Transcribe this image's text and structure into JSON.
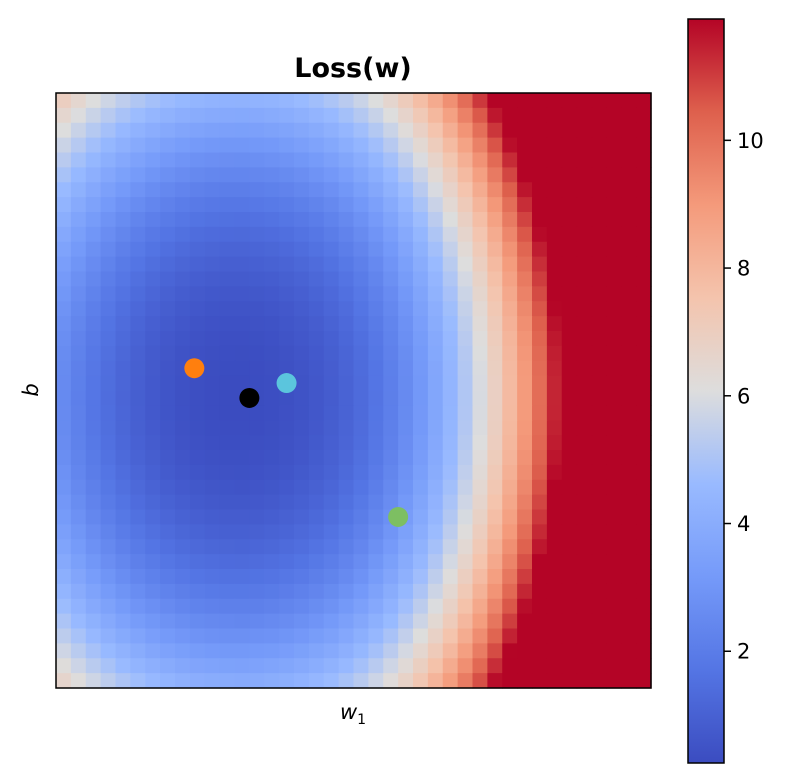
{
  "chart_data": {
    "type": "heatmap",
    "title": "Loss(w)",
    "xlabel": {
      "base": "w",
      "sub": "1"
    },
    "ylabel": "b",
    "x_ticks": [],
    "y_ticks": [],
    "grid_size": [
      40,
      40
    ],
    "colormap": "coolwarm",
    "colorbar": {
      "vmin": 0.25,
      "vmax": 11.9,
      "ticks": [
        2,
        4,
        6,
        8,
        10
      ]
    },
    "surface": {
      "description_of_shape": "bowl-shaped loss surface, minimum near the black point, rising steeply toward the right edge",
      "minimum_value": 0.25,
      "maximum_value": 11.9
    },
    "points": [
      {
        "color": "#ff7f0e",
        "x": 9.3,
        "y": 18.5
      },
      {
        "color": "#000000",
        "x": 13.0,
        "y": 20.5
      },
      {
        "color": "#5bc5dd",
        "x": 15.5,
        "y": 19.5
      },
      {
        "color": "#7dbf62",
        "x": 23.0,
        "y": 28.5
      }
    ]
  }
}
